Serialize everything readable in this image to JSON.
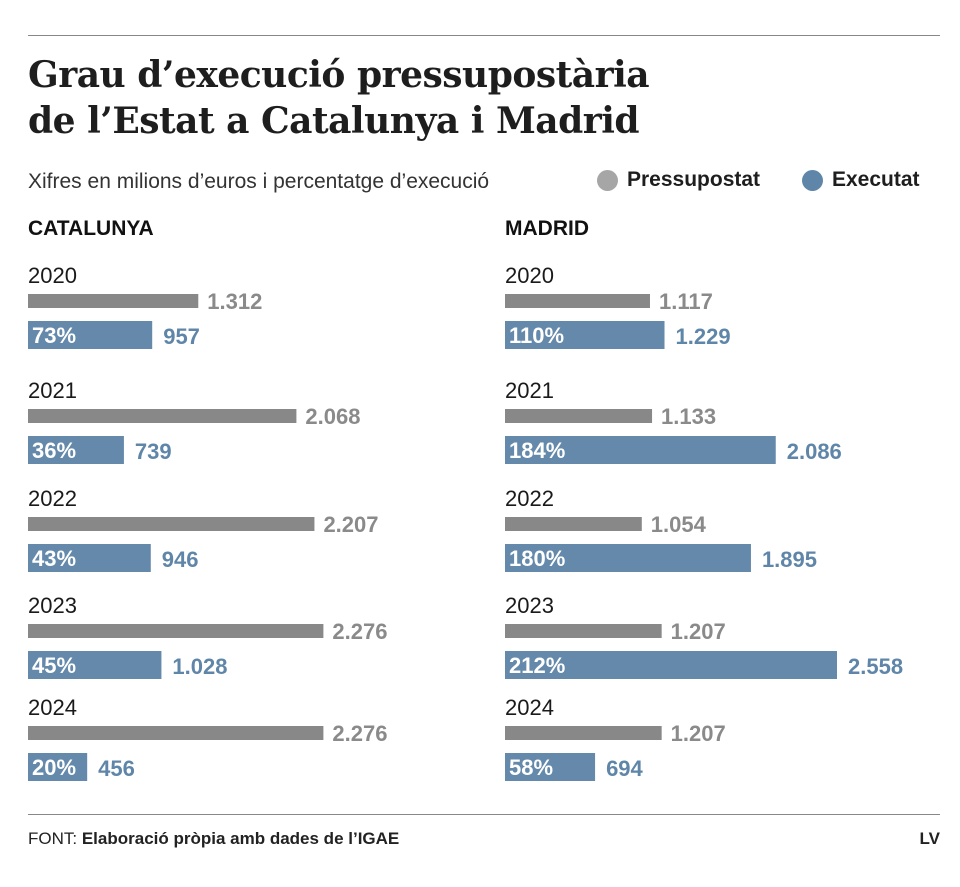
{
  "chart_data": {
    "type": "bar",
    "title_lines": [
      "Grau d’execució pressupostària",
      "de l’Estat a Catalunya i Madrid"
    ],
    "subtitle": "Xifres en milions d’euros i percentatge d’execució",
    "legend": [
      {
        "name": "Pressupostat",
        "color": "#a6a6a6"
      },
      {
        "name": "Executat",
        "color": "#5f86a8"
      }
    ],
    "colors": {
      "budget_bar": "#888888",
      "executed_bar": "#6489aa",
      "budget_text": "#8a8a8a",
      "executed_text": "#5f86a8"
    },
    "groups": [
      {
        "region": "CATALUNYA",
        "years": [
          {
            "year": "2020",
            "budget": 1312,
            "budget_label": "1.312",
            "executed": 957,
            "executed_label": "957",
            "pct": "73%"
          },
          {
            "year": "2021",
            "budget": 2068,
            "budget_label": "2.068",
            "executed": 739,
            "executed_label": "739",
            "pct": "36%"
          },
          {
            "year": "2022",
            "budget": 2207,
            "budget_label": "2.207",
            "executed": 946,
            "executed_label": "946",
            "pct": "43%"
          },
          {
            "year": "2023",
            "budget": 2276,
            "budget_label": "2.276",
            "executed": 1028,
            "executed_label": "1.028",
            "pct": "45%"
          },
          {
            "year": "2024",
            "budget": 2276,
            "budget_label": "2.276",
            "executed": 456,
            "executed_label": "456",
            "pct": "20%"
          }
        ]
      },
      {
        "region": "MADRID",
        "years": [
          {
            "year": "2020",
            "budget": 1117,
            "budget_label": "1.117",
            "executed": 1229,
            "executed_label": "1.229",
            "pct": "110%"
          },
          {
            "year": "2021",
            "budget": 1133,
            "budget_label": "1.133",
            "executed": 2086,
            "executed_label": "2.086",
            "pct": "184%"
          },
          {
            "year": "2022",
            "budget": 1054,
            "budget_label": "1.054",
            "executed": 1895,
            "executed_label": "1.895",
            "pct": "180%"
          },
          {
            "year": "2023",
            "budget": 1207,
            "budget_label": "1.207",
            "executed": 2558,
            "executed_label": "2.558",
            "pct": "212%"
          },
          {
            "year": "2024",
            "budget": 1207,
            "budget_label": "1.207",
            "executed": 694,
            "executed_label": "694",
            "pct": "58%"
          }
        ]
      }
    ],
    "xlim": [
      0,
      2558
    ]
  },
  "footer": {
    "prefix": "FONT:",
    "source": "Elaboració pròpia amb dades de l’IGAE",
    "brand": "LV"
  }
}
